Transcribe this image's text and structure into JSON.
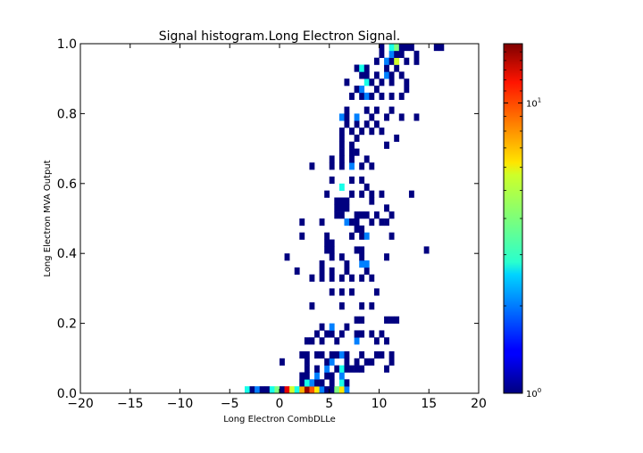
{
  "chart_data": {
    "type": "heatmap",
    "title": "Signal histogram.Long Electron Signal.",
    "xlabel": "Long Electron CombDLLe",
    "ylabel": "Long Electron MVA Output",
    "xlim": [
      -20,
      20
    ],
    "ylim": [
      0.0,
      1.0
    ],
    "x_ticks": [
      "−20",
      "−15",
      "−10",
      "−5",
      "0",
      "5",
      "10",
      "15",
      "20"
    ],
    "x_tick_values": [
      -20,
      -15,
      -10,
      -5,
      0,
      5,
      10,
      15,
      20
    ],
    "y_ticks": [
      "0.0",
      "0.2",
      "0.4",
      "0.6",
      "0.8",
      "1.0"
    ],
    "y_tick_values": [
      0.0,
      0.2,
      0.4,
      0.6,
      0.8,
      1.0
    ],
    "grid": false,
    "colormap": "jet",
    "color_scale": "log",
    "colorbar": {
      "min": 1,
      "max": 16,
      "tick_values": [
        1,
        10
      ],
      "tick_base": "10",
      "tick_exponents": [
        "0",
        "1"
      ]
    },
    "bin_width_x": 0.5,
    "bin_height_y": 0.02,
    "cells": [
      [
        -3.5,
        0.0,
        3
      ],
      [
        -3.0,
        0.0,
        1
      ],
      [
        -2.5,
        0.0,
        2
      ],
      [
        -2.0,
        0.0,
        1
      ],
      [
        -1.5,
        0.0,
        1
      ],
      [
        -1.0,
        0.0,
        3
      ],
      [
        -0.5,
        0.0,
        4
      ],
      [
        0.0,
        0.0,
        1
      ],
      [
        0.5,
        0.0,
        12
      ],
      [
        1.0,
        0.0,
        5
      ],
      [
        1.5,
        0.0,
        3
      ],
      [
        2.0,
        0.0,
        7
      ],
      [
        2.5,
        0.0,
        15
      ],
      [
        3.0,
        0.0,
        9
      ],
      [
        3.5,
        0.0,
        6
      ],
      [
        4.0,
        0.0,
        2
      ],
      [
        4.5,
        0.0,
        1
      ],
      [
        5.0,
        0.0,
        1
      ],
      [
        5.5,
        0.0,
        4
      ],
      [
        6.0,
        0.0,
        6
      ],
      [
        6.5,
        0.0,
        2
      ],
      [
        2.0,
        0.02,
        1
      ],
      [
        2.5,
        0.02,
        3
      ],
      [
        3.0,
        0.02,
        2
      ],
      [
        3.5,
        0.02,
        1
      ],
      [
        4.0,
        0.02,
        1
      ],
      [
        5.0,
        0.02,
        1
      ],
      [
        6.0,
        0.02,
        3
      ],
      [
        6.5,
        0.02,
        1
      ],
      [
        2.0,
        0.04,
        1
      ],
      [
        2.5,
        0.04,
        1
      ],
      [
        3.5,
        0.04,
        2
      ],
      [
        4.5,
        0.04,
        1
      ],
      [
        5.0,
        0.04,
        1
      ],
      [
        6.0,
        0.04,
        2
      ],
      [
        2.5,
        0.06,
        1
      ],
      [
        3.5,
        0.06,
        1
      ],
      [
        4.5,
        0.06,
        2
      ],
      [
        5.5,
        0.06,
        1
      ],
      [
        6.0,
        0.06,
        3
      ],
      [
        6.5,
        0.06,
        1
      ],
      [
        7.0,
        0.06,
        1
      ],
      [
        7.5,
        0.06,
        1
      ],
      [
        8.0,
        0.06,
        1
      ],
      [
        10.5,
        0.06,
        1
      ],
      [
        0.0,
        0.08,
        1
      ],
      [
        2.5,
        0.08,
        1
      ],
      [
        4.5,
        0.08,
        1
      ],
      [
        5.0,
        0.08,
        2
      ],
      [
        6.5,
        0.08,
        1
      ],
      [
        7.5,
        0.08,
        1
      ],
      [
        8.5,
        0.08,
        1
      ],
      [
        9.0,
        0.08,
        1
      ],
      [
        11.0,
        0.08,
        1
      ],
      [
        2.0,
        0.1,
        1
      ],
      [
        2.5,
        0.1,
        1
      ],
      [
        3.5,
        0.1,
        1
      ],
      [
        4.0,
        0.1,
        1
      ],
      [
        5.0,
        0.1,
        1
      ],
      [
        5.5,
        0.1,
        1
      ],
      [
        6.0,
        0.1,
        2
      ],
      [
        6.5,
        0.1,
        1
      ],
      [
        8.0,
        0.1,
        1
      ],
      [
        9.5,
        0.1,
        1
      ],
      [
        10.0,
        0.1,
        1
      ],
      [
        11.0,
        0.1,
        1
      ],
      [
        2.5,
        0.14,
        1
      ],
      [
        3.0,
        0.14,
        1
      ],
      [
        4.0,
        0.14,
        1
      ],
      [
        5.5,
        0.14,
        1
      ],
      [
        7.5,
        0.14,
        2
      ],
      [
        9.5,
        0.14,
        1
      ],
      [
        10.5,
        0.14,
        1
      ],
      [
        3.5,
        0.16,
        1
      ],
      [
        4.5,
        0.16,
        1
      ],
      [
        5.0,
        0.16,
        1
      ],
      [
        6.0,
        0.16,
        1
      ],
      [
        7.5,
        0.16,
        1
      ],
      [
        8.0,
        0.16,
        1
      ],
      [
        9.0,
        0.16,
        1
      ],
      [
        10.0,
        0.16,
        1
      ],
      [
        4.0,
        0.18,
        1
      ],
      [
        5.0,
        0.18,
        2
      ],
      [
        6.5,
        0.18,
        1
      ],
      [
        7.5,
        0.2,
        1
      ],
      [
        8.0,
        0.2,
        1
      ],
      [
        10.5,
        0.2,
        1
      ],
      [
        11.0,
        0.2,
        1
      ],
      [
        11.5,
        0.2,
        1
      ],
      [
        3.0,
        0.24,
        1
      ],
      [
        6.0,
        0.24,
        1
      ],
      [
        8.0,
        0.24,
        1
      ],
      [
        9.0,
        0.24,
        1
      ],
      [
        5.0,
        0.28,
        1
      ],
      [
        6.0,
        0.28,
        1
      ],
      [
        7.0,
        0.28,
        1
      ],
      [
        9.5,
        0.28,
        1
      ],
      [
        3.0,
        0.32,
        1
      ],
      [
        4.0,
        0.32,
        1
      ],
      [
        5.0,
        0.32,
        1
      ],
      [
        6.0,
        0.32,
        1
      ],
      [
        7.0,
        0.32,
        1
      ],
      [
        8.0,
        0.32,
        1
      ],
      [
        9.0,
        0.32,
        1
      ],
      [
        1.5,
        0.34,
        1
      ],
      [
        4.0,
        0.34,
        1
      ],
      [
        5.0,
        0.34,
        1
      ],
      [
        6.5,
        0.34,
        1
      ],
      [
        8.5,
        0.34,
        1
      ],
      [
        4.0,
        0.36,
        1
      ],
      [
        6.5,
        0.36,
        1
      ],
      [
        8.0,
        0.36,
        2
      ],
      [
        8.5,
        0.36,
        2
      ],
      [
        0.5,
        0.38,
        1
      ],
      [
        5.0,
        0.38,
        1
      ],
      [
        6.0,
        0.38,
        1
      ],
      [
        8.0,
        0.38,
        1
      ],
      [
        10.5,
        0.38,
        1
      ],
      [
        4.5,
        0.4,
        1
      ],
      [
        5.0,
        0.4,
        1
      ],
      [
        7.5,
        0.4,
        1
      ],
      [
        8.0,
        0.4,
        1
      ],
      [
        14.5,
        0.4,
        1
      ],
      [
        4.5,
        0.42,
        1
      ],
      [
        5.0,
        0.42,
        1
      ],
      [
        2.0,
        0.44,
        1
      ],
      [
        4.5,
        0.44,
        1
      ],
      [
        7.0,
        0.44,
        1
      ],
      [
        8.0,
        0.44,
        1
      ],
      [
        8.5,
        0.44,
        2
      ],
      [
        11.0,
        0.44,
        1
      ],
      [
        7.5,
        0.46,
        1
      ],
      [
        8.0,
        0.46,
        1
      ],
      [
        2.0,
        0.48,
        1
      ],
      [
        4.0,
        0.48,
        1
      ],
      [
        6.5,
        0.48,
        2
      ],
      [
        7.0,
        0.48,
        1
      ],
      [
        7.5,
        0.48,
        1
      ],
      [
        9.0,
        0.48,
        1
      ],
      [
        10.0,
        0.48,
        1
      ],
      [
        10.5,
        0.48,
        1
      ],
      [
        5.5,
        0.5,
        1
      ],
      [
        6.0,
        0.5,
        1
      ],
      [
        7.5,
        0.5,
        1
      ],
      [
        8.0,
        0.5,
        1
      ],
      [
        8.5,
        0.5,
        1
      ],
      [
        9.5,
        0.5,
        1
      ],
      [
        11.0,
        0.5,
        1
      ],
      [
        5.5,
        0.52,
        1
      ],
      [
        6.0,
        0.52,
        1
      ],
      [
        6.5,
        0.52,
        1
      ],
      [
        10.5,
        0.52,
        1
      ],
      [
        5.5,
        0.54,
        1
      ],
      [
        6.0,
        0.54,
        1
      ],
      [
        6.5,
        0.54,
        1
      ],
      [
        9.0,
        0.54,
        1
      ],
      [
        4.5,
        0.56,
        1
      ],
      [
        7.0,
        0.56,
        1
      ],
      [
        8.0,
        0.56,
        1
      ],
      [
        9.0,
        0.56,
        1
      ],
      [
        10.0,
        0.56,
        1
      ],
      [
        13.0,
        0.56,
        1
      ],
      [
        6.0,
        0.58,
        3
      ],
      [
        8.5,
        0.58,
        1
      ],
      [
        5.0,
        0.6,
        1
      ],
      [
        7.0,
        0.6,
        1
      ],
      [
        8.0,
        0.6,
        1
      ],
      [
        3.0,
        0.64,
        1
      ],
      [
        5.0,
        0.64,
        1
      ],
      [
        6.0,
        0.64,
        1
      ],
      [
        7.0,
        0.64,
        2
      ],
      [
        8.0,
        0.64,
        1
      ],
      [
        9.0,
        0.64,
        1
      ],
      [
        5.0,
        0.66,
        1
      ],
      [
        6.0,
        0.66,
        1
      ],
      [
        7.0,
        0.66,
        1
      ],
      [
        8.5,
        0.66,
        1
      ],
      [
        6.0,
        0.68,
        1
      ],
      [
        7.0,
        0.68,
        1
      ],
      [
        7.5,
        0.68,
        1
      ],
      [
        6.0,
        0.7,
        1
      ],
      [
        7.0,
        0.7,
        1
      ],
      [
        10.5,
        0.7,
        1
      ],
      [
        6.0,
        0.72,
        1
      ],
      [
        7.5,
        0.72,
        1
      ],
      [
        11.5,
        0.72,
        1
      ],
      [
        6.0,
        0.74,
        1
      ],
      [
        7.0,
        0.74,
        1
      ],
      [
        8.0,
        0.74,
        1
      ],
      [
        9.0,
        0.74,
        1
      ],
      [
        10.0,
        0.74,
        1
      ],
      [
        6.5,
        0.76,
        1
      ],
      [
        7.5,
        0.76,
        1
      ],
      [
        8.5,
        0.76,
        1
      ],
      [
        9.5,
        0.76,
        1
      ],
      [
        6.0,
        0.78,
        2
      ],
      [
        6.5,
        0.78,
        1
      ],
      [
        7.5,
        0.78,
        2
      ],
      [
        9.0,
        0.78,
        1
      ],
      [
        10.5,
        0.78,
        1
      ],
      [
        12.0,
        0.78,
        1
      ],
      [
        13.5,
        0.78,
        1
      ],
      [
        6.5,
        0.8,
        1
      ],
      [
        8.5,
        0.8,
        1
      ],
      [
        9.5,
        0.8,
        1
      ],
      [
        11.0,
        0.8,
        1
      ],
      [
        7.0,
        0.84,
        1
      ],
      [
        8.0,
        0.84,
        1
      ],
      [
        8.5,
        0.84,
        2
      ],
      [
        9.0,
        0.84,
        1
      ],
      [
        10.0,
        0.84,
        1
      ],
      [
        11.0,
        0.84,
        1
      ],
      [
        12.0,
        0.84,
        1
      ],
      [
        7.5,
        0.86,
        1
      ],
      [
        8.0,
        0.86,
        2
      ],
      [
        9.5,
        0.86,
        1
      ],
      [
        12.5,
        0.86,
        1
      ],
      [
        6.5,
        0.88,
        1
      ],
      [
        8.5,
        0.88,
        3
      ],
      [
        9.0,
        0.88,
        1
      ],
      [
        10.0,
        0.88,
        1
      ],
      [
        11.0,
        0.88,
        1
      ],
      [
        12.5,
        0.88,
        1
      ],
      [
        8.0,
        0.9,
        1
      ],
      [
        8.5,
        0.9,
        1
      ],
      [
        9.5,
        0.9,
        1
      ],
      [
        10.5,
        0.9,
        2
      ],
      [
        11.0,
        0.9,
        1
      ],
      [
        12.0,
        0.9,
        1
      ],
      [
        7.5,
        0.92,
        1
      ],
      [
        8.0,
        0.92,
        3
      ],
      [
        8.5,
        0.92,
        1
      ],
      [
        10.5,
        0.92,
        1
      ],
      [
        11.5,
        0.92,
        1
      ],
      [
        9.5,
        0.94,
        1
      ],
      [
        10.5,
        0.94,
        2
      ],
      [
        11.0,
        0.94,
        1
      ],
      [
        11.5,
        0.94,
        5
      ],
      [
        12.5,
        0.94,
        1
      ],
      [
        13.5,
        0.94,
        1
      ],
      [
        10.0,
        0.96,
        1
      ],
      [
        11.0,
        0.96,
        2
      ],
      [
        11.5,
        0.96,
        1
      ],
      [
        12.0,
        0.96,
        1
      ],
      [
        13.5,
        0.96,
        1
      ],
      [
        10.0,
        0.98,
        1
      ],
      [
        11.0,
        0.98,
        3
      ],
      [
        11.5,
        0.98,
        4
      ],
      [
        12.0,
        0.98,
        1
      ],
      [
        12.5,
        0.98,
        1
      ],
      [
        13.0,
        0.98,
        1
      ],
      [
        15.5,
        0.98,
        1
      ],
      [
        16.0,
        0.98,
        1
      ]
    ]
  }
}
